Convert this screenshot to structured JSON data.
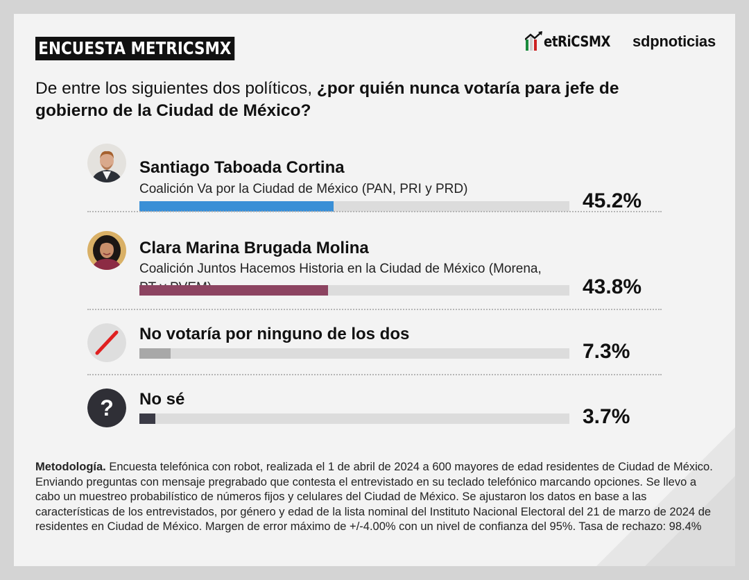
{
  "header": {
    "tag": "ENCUESTA METRICSMX",
    "logo_metrics": "etRiCSMX",
    "logo_sdp": "sdpnoticias"
  },
  "question": {
    "plain": "De entre los siguientes dos políticos, ",
    "bold": "¿por quién nunca votaría para jefe de gobierno de la Ciudad de México?"
  },
  "chart_data": {
    "type": "bar",
    "orientation": "horizontal",
    "ylim": [
      0,
      100
    ],
    "categories": [
      "Santiago Taboada Cortina",
      "Clara Marina Brugada Molina",
      "No votaría por ninguno de los dos",
      "No sé"
    ],
    "values": [
      45.2,
      43.8,
      7.3,
      3.7
    ],
    "value_labels": [
      "45.2%",
      "43.8%",
      "7.3%",
      "3.7%"
    ],
    "subtitles": [
      "Coalición Va por la Ciudad de México (PAN, PRI y PRD)",
      "Coalición Juntos Hacemos Historia en la Ciudad de México (Morena, PT y PVEM)",
      "",
      ""
    ],
    "colors": [
      "#3a8fd6",
      "#8c4461",
      "#a8a8a8",
      "#3b3b46"
    ],
    "track_color": "#dcdcdc",
    "icons": [
      "candidate-photo",
      "candidate-photo",
      "slash-icon",
      "question-icon"
    ]
  },
  "methodology": {
    "label": "Metodología.",
    "text": " Encuesta telefónica con robot, realizada el 1 de abril de 2024 a 600 mayores de edad residentes de Ciudad de México. Enviando preguntas con mensaje pregrabado que contesta el entrevistado en su teclado telefónico marcando opciones. Se llevo a cabo un muestreo probabilístico de números fijos y celulares del Ciudad de México. Se ajustaron los datos en base a las características de los entrevistados, por género y edad de la lista nominal del Instituto Nacional Electoral del 21 de marzo de 2024 de residentes en Ciudad de México. Margen de error máximo de +/-4.00% con un nivel de confianza del 95%. Tasa de rechazo: 98.4%"
  }
}
